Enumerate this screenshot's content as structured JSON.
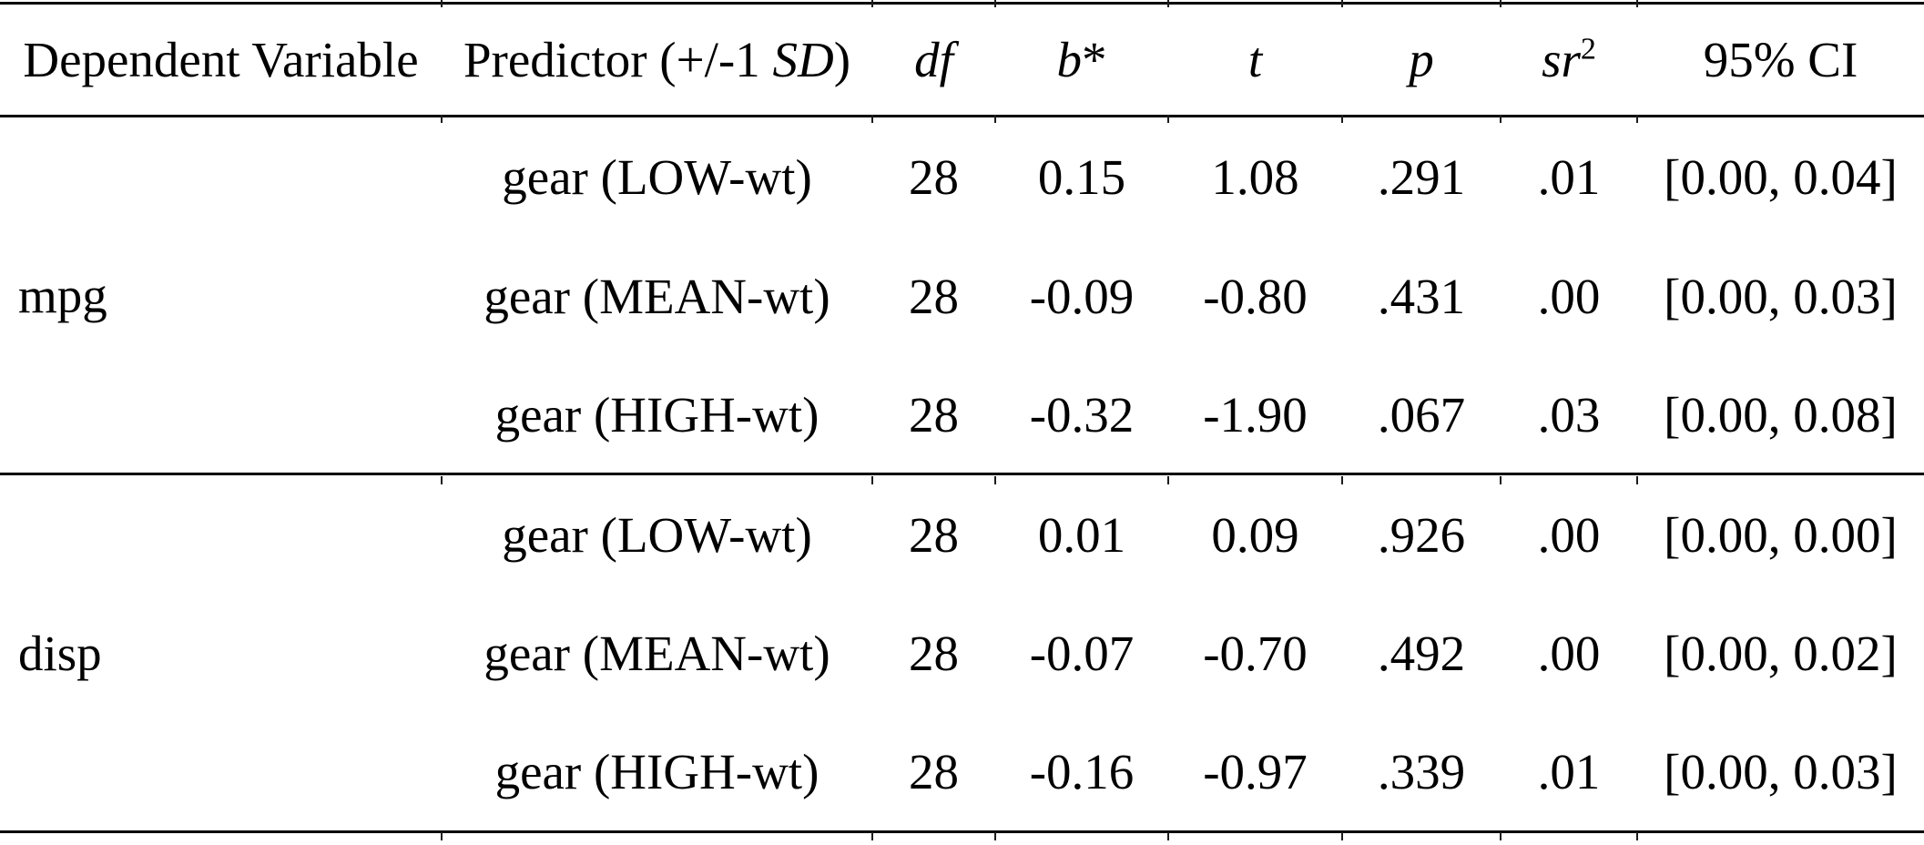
{
  "table": {
    "header": {
      "dependent_variable": "Dependent Variable",
      "predictor_prefix": "Predictor (+/-1 ",
      "predictor_sd": "SD",
      "predictor_suffix": ")",
      "df": "df",
      "b": "b",
      "b_star": "*",
      "t": "t",
      "p": "p",
      "sr": "sr",
      "sr_sup": "2",
      "ci": "95% CI"
    },
    "sections": [
      {
        "dependent_variable": "mpg",
        "rows": [
          {
            "predictor": "gear (LOW-wt)",
            "df": "28",
            "b": "0.15",
            "t": "1.08",
            "p": ".291",
            "sr2": ".01",
            "ci": "[0.00, 0.04]"
          },
          {
            "predictor": "gear (MEAN-wt)",
            "df": "28",
            "b": "-0.09",
            "t": "-0.80",
            "p": ".431",
            "sr2": ".00",
            "ci": "[0.00, 0.03]"
          },
          {
            "predictor": "gear (HIGH-wt)",
            "df": "28",
            "b": "-0.32",
            "t": "-1.90",
            "p": ".067",
            "sr2": ".03",
            "ci": "[0.00, 0.08]"
          }
        ]
      },
      {
        "dependent_variable": "disp",
        "rows": [
          {
            "predictor": "gear (LOW-wt)",
            "df": "28",
            "b": "0.01",
            "t": "0.09",
            "p": ".926",
            "sr2": ".00",
            "ci": "[0.00, 0.00]"
          },
          {
            "predictor": "gear (MEAN-wt)",
            "df": "28",
            "b": "-0.07",
            "t": "-0.70",
            "p": ".492",
            "sr2": ".00",
            "ci": "[0.00, 0.02]"
          },
          {
            "predictor": "gear (HIGH-wt)",
            "df": "28",
            "b": "-0.16",
            "t": "-0.97",
            "p": ".339",
            "sr2": ".01",
            "ci": "[0.00, 0.03]"
          }
        ]
      }
    ],
    "colors": {
      "rule": "#000000",
      "text": "#000000",
      "background": "#ffffff"
    }
  }
}
